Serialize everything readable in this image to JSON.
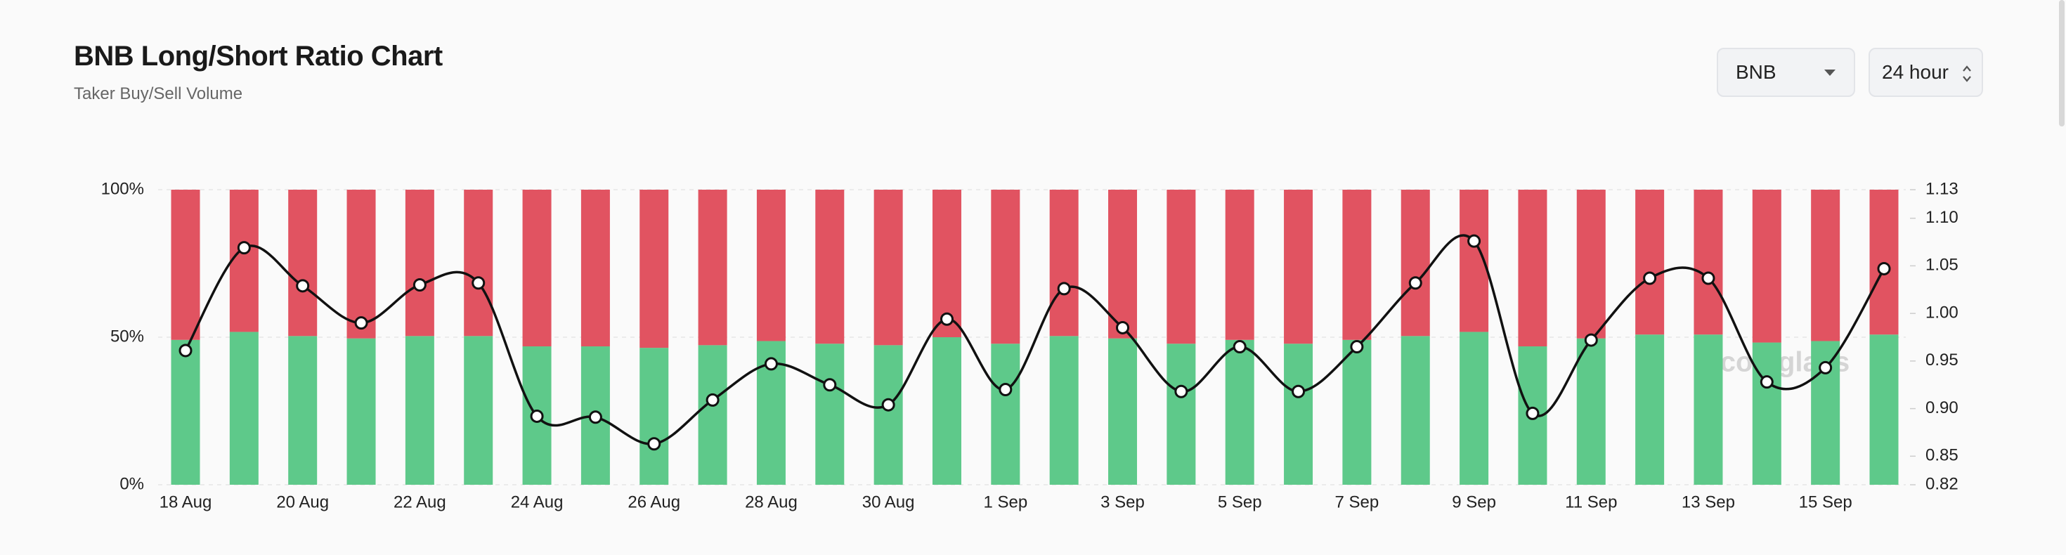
{
  "chart_data": {
    "type": "bar",
    "title": "BNB Long/Short Ratio Chart",
    "subtitle": "Taker Buy/Sell Volume",
    "categories": [
      "18 Aug",
      null,
      "20 Aug",
      null,
      "22 Aug",
      null,
      "24 Aug",
      null,
      "26 Aug",
      null,
      "28 Aug",
      null,
      "30 Aug",
      null,
      "1 Sep",
      null,
      "3 Sep",
      null,
      "5 Sep",
      null,
      "7 Sep",
      null,
      "9 Sep",
      null,
      "11 Sep",
      null,
      "13 Sep",
      null,
      "15 Sep",
      null
    ],
    "stacked": true,
    "series": [
      {
        "type": "bar",
        "color": "#5ec98a",
        "values": [
          49.1,
          51.8,
          50.4,
          49.6,
          50.4,
          50.4,
          46.9,
          46.9,
          46.4,
          47.3,
          48.7,
          47.8,
          47.3,
          50.0,
          47.8,
          50.4,
          49.6,
          47.8,
          49.1,
          47.8,
          49.1,
          50.4,
          51.8,
          46.9,
          49.6,
          50.9,
          50.9,
          48.2,
          48.7,
          50.9
        ]
      },
      {
        "type": "bar",
        "color": "#e15361",
        "values": [
          50.9,
          48.2,
          49.6,
          50.4,
          49.6,
          49.6,
          53.1,
          53.1,
          53.6,
          52.7,
          51.3,
          52.2,
          52.7,
          50.0,
          52.2,
          49.6,
          50.4,
          52.2,
          50.9,
          52.2,
          50.9,
          49.6,
          48.2,
          53.1,
          50.4,
          49.1,
          49.1,
          51.8,
          51.3,
          49.1
        ]
      },
      {
        "type": "line",
        "axis": "y2",
        "color": "#111111",
        "values": [
          0.961,
          1.069,
          1.029,
          0.99,
          1.03,
          1.032,
          0.892,
          0.891,
          0.863,
          0.909,
          0.947,
          0.925,
          0.904,
          0.994,
          0.92,
          1.026,
          0.985,
          0.918,
          0.965,
          0.918,
          0.965,
          1.032,
          1.076,
          0.895,
          0.972,
          1.037,
          1.037,
          0.928,
          0.943,
          1.047
        ]
      }
    ],
    "ylim": [
      0,
      100
    ],
    "yticks": [
      {
        "value": 0,
        "label": "0%"
      },
      {
        "value": 50,
        "label": "50%"
      },
      {
        "value": 100,
        "label": "100%"
      }
    ],
    "y2lim": [
      0.82,
      1.13
    ],
    "y2ticks": [
      1.13,
      {
        "value": 1.1,
        "label": "1.10"
      },
      1.05,
      {
        "value": 1.0,
        "label": "1.00"
      },
      0.95,
      {
        "value": 0.9,
        "label": "0.90"
      },
      0.85,
      0.82
    ],
    "grid": true
  },
  "controls": {
    "symbol": "BNB",
    "interval": "24 hour"
  },
  "watermark": "coinglass"
}
